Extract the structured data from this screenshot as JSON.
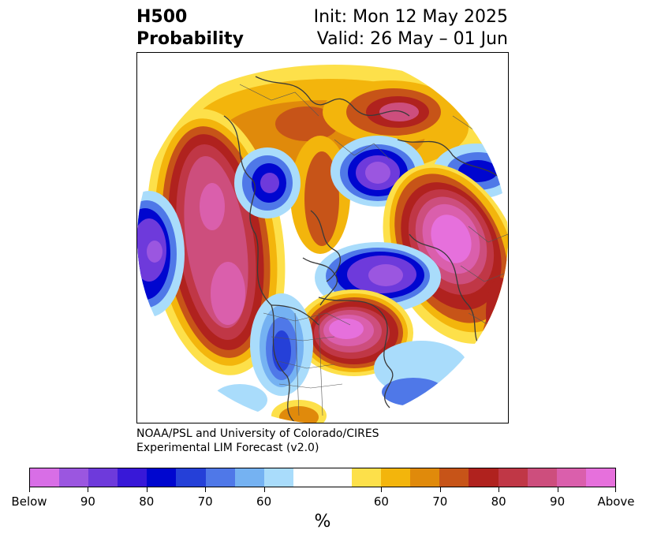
{
  "header": {
    "title_line1": "H500",
    "title_line2": "Probability",
    "init": "Init: Mon 12 May 2025",
    "valid": "Valid: 26 May – 01 Jun"
  },
  "credit": {
    "line1": "NOAA/PSL and University of Colorado/CIRES",
    "line2": "Experimental LIM Forecast (v2.0)"
  },
  "colorbar": {
    "units": "%",
    "colors": [
      "#d86ee6",
      "#9b56e0",
      "#6e3adb",
      "#3818d8",
      "#0006cf",
      "#2540d8",
      "#4f78e8",
      "#75b2f2",
      "#a9dcfb",
      "#ffffff",
      "#ffffff",
      "#fde04a",
      "#f3b50c",
      "#e08a0b",
      "#c75418",
      "#b0221e",
      "#c03746",
      "#cd4e7d",
      "#da5fac",
      "#e670dc"
    ],
    "tick_labels": [
      "Below",
      "90",
      "80",
      "70",
      "60",
      "60",
      "70",
      "80",
      "90",
      "Above"
    ]
  }
}
